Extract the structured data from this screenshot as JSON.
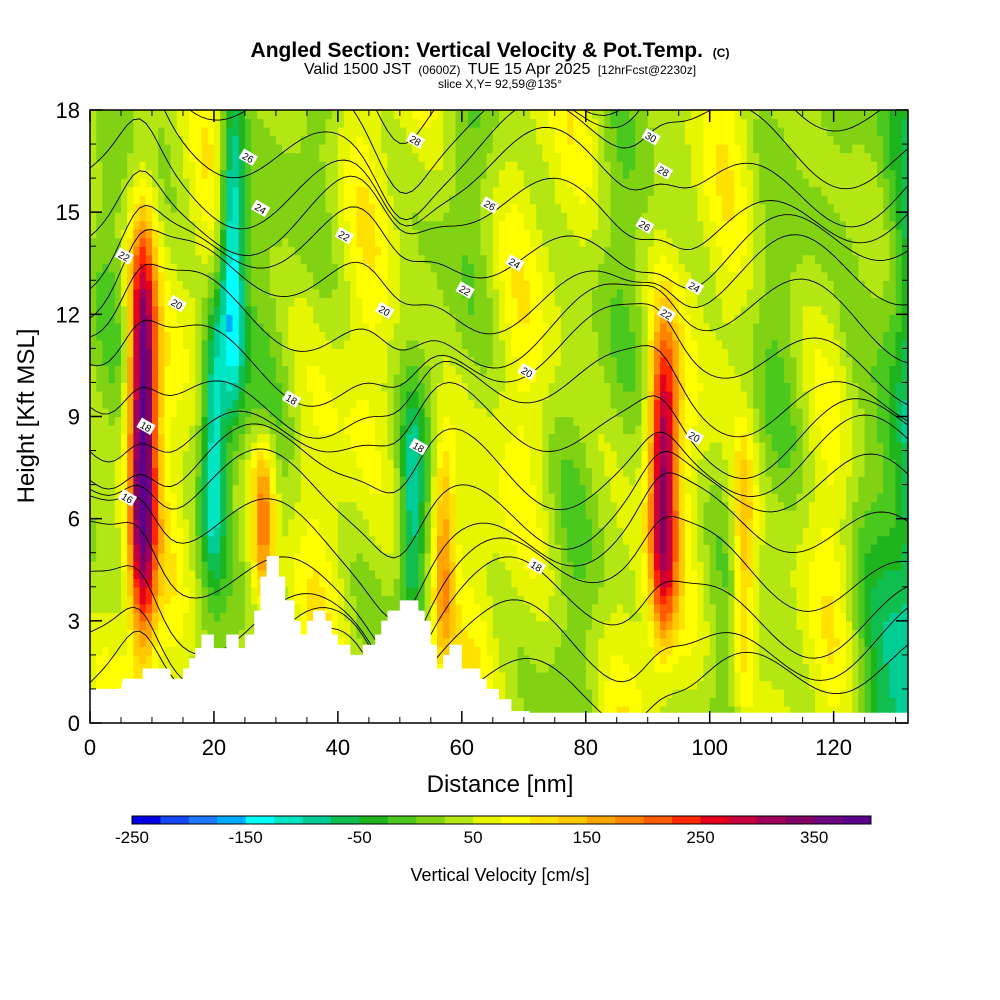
{
  "header": {
    "title_main": "Angled Section: Vertical Velocity & Pot.Temp.",
    "title_unit": "(C)",
    "valid_prefix": "Valid 1500 JST",
    "valid_utc": "(0600Z)",
    "valid_date": "TUE 15 Apr 2025",
    "forecast_info": "[12hrFcst@2230z]",
    "slice_info": "slice X,Y= 92,59@135°"
  },
  "chart_data": {
    "type": "heatmap",
    "xlabel": "Distance [nm]",
    "ylabel": "Height [Kft MSL]",
    "xlim": [
      0,
      132
    ],
    "ylim": [
      0,
      18
    ],
    "x_ticks": [
      0,
      20,
      40,
      60,
      80,
      100,
      120
    ],
    "y_ticks": [
      0,
      3,
      6,
      9,
      12,
      15,
      18
    ],
    "colorbar": {
      "label": "Vertical Velocity [cm/s]",
      "min": -250,
      "max": 400,
      "step": 25,
      "tick_values": [
        -250,
        -150,
        -50,
        50,
        150,
        250,
        350
      ],
      "colors": [
        "#0000e6",
        "#1446f5",
        "#1e78ff",
        "#00aaff",
        "#00ffff",
        "#00e6c3",
        "#00cd96",
        "#10be50",
        "#1eb41e",
        "#4bc81e",
        "#82d214",
        "#b4e614",
        "#e6f500",
        "#ffff00",
        "#ffe100",
        "#ffc800",
        "#ffa500",
        "#ff8200",
        "#ff5a00",
        "#ff2800",
        "#e6001e",
        "#c8003c",
        "#a0005a",
        "#820064",
        "#6e0082",
        "#5a008c"
      ]
    },
    "updraft_bands": [
      {
        "center_nm": 8.5,
        "peak_cm_s": 380,
        "base_kft": 3,
        "top_kft": 14
      },
      {
        "center_nm": 28,
        "peak_cm_s": 200,
        "base_kft": 4,
        "top_kft": 8
      },
      {
        "center_nm": 57,
        "peak_cm_s": 180,
        "base_kft": 2,
        "top_kft": 8
      },
      {
        "center_nm": 92.5,
        "peak_cm_s": 300,
        "base_kft": 3,
        "top_kft": 11
      },
      {
        "center_nm": 105.5,
        "peak_cm_s": 160,
        "base_kft": 1,
        "top_kft": 8
      }
    ],
    "downdraft_bands": [
      {
        "center_nm": 20,
        "min_cm_s": -120,
        "base_kft": 5,
        "top_kft": 12
      },
      {
        "center_nm": 23,
        "min_cm_s": -160,
        "base_kft": 9,
        "top_kft": 18
      },
      {
        "center_nm": 52,
        "min_cm_s": -60,
        "base_kft": 3,
        "top_kft": 9
      }
    ],
    "terrain_kft": [
      [
        0,
        1
      ],
      [
        5,
        1
      ],
      [
        5.3,
        1.3
      ],
      [
        8.5,
        1.3
      ],
      [
        8.5,
        1.6
      ],
      [
        13,
        1.6
      ],
      [
        13,
        1.3
      ],
      [
        15,
        1.3
      ],
      [
        15,
        1.6
      ],
      [
        16,
        1.6
      ],
      [
        16,
        1.9
      ],
      [
        17,
        1.9
      ],
      [
        17,
        2.2
      ],
      [
        18,
        2.2
      ],
      [
        18,
        2.6
      ],
      [
        20,
        2.6
      ],
      [
        20,
        2.2
      ],
      [
        22,
        2.2
      ],
      [
        22,
        2.6
      ],
      [
        24,
        2.6
      ],
      [
        24,
        2.2
      ],
      [
        25,
        2.2
      ],
      [
        25,
        2.6
      ],
      [
        26.5,
        2.6
      ],
      [
        26.5,
        3.3
      ],
      [
        27.5,
        3.3
      ],
      [
        27.5,
        4.3
      ],
      [
        28.5,
        4.3
      ],
      [
        28.5,
        4.9
      ],
      [
        30.5,
        4.9
      ],
      [
        30.5,
        4.3
      ],
      [
        31.5,
        4.3
      ],
      [
        31.5,
        3.6
      ],
      [
        33,
        3.6
      ],
      [
        33,
        3.0
      ],
      [
        34,
        3.0
      ],
      [
        34,
        2.6
      ],
      [
        35,
        2.6
      ],
      [
        35,
        3.0
      ],
      [
        36,
        3.0
      ],
      [
        36,
        3.3
      ],
      [
        38,
        3.3
      ],
      [
        38,
        3.0
      ],
      [
        39,
        3.0
      ],
      [
        39,
        2.6
      ],
      [
        40,
        2.6
      ],
      [
        40,
        2.3
      ],
      [
        42,
        2.3
      ],
      [
        42,
        2.0
      ],
      [
        44,
        2.0
      ],
      [
        44,
        2.3
      ],
      [
        46,
        2.3
      ],
      [
        46,
        2.6
      ],
      [
        47,
        2.6
      ],
      [
        47,
        3.0
      ],
      [
        48,
        3.0
      ],
      [
        48,
        3.3
      ],
      [
        50,
        3.3
      ],
      [
        50,
        3.6
      ],
      [
        53,
        3.6
      ],
      [
        53,
        3.3
      ],
      [
        54,
        3.3
      ],
      [
        54,
        3.0
      ],
      [
        55,
        3.0
      ],
      [
        55,
        2.3
      ],
      [
        56,
        2.3
      ],
      [
        56,
        1.6
      ],
      [
        57,
        1.6
      ],
      [
        57,
        2.0
      ],
      [
        58,
        2.0
      ],
      [
        58,
        2.3
      ],
      [
        60,
        2.3
      ],
      [
        60,
        1.6
      ],
      [
        63,
        1.6
      ],
      [
        63,
        1.3
      ],
      [
        64,
        1.3
      ],
      [
        64,
        1.0
      ],
      [
        66,
        1.0
      ],
      [
        66,
        0.7
      ],
      [
        68,
        0.7
      ],
      [
        68,
        0.35
      ],
      [
        71,
        0.35
      ],
      [
        71,
        0.3
      ],
      [
        132,
        0.3
      ]
    ],
    "isentrope_labels": [
      {
        "x": 5.5,
        "y": 13.7,
        "text": "22"
      },
      {
        "x": 14,
        "y": 12.3,
        "text": "20"
      },
      {
        "x": 9,
        "y": 8.7,
        "text": "18"
      },
      {
        "x": 6,
        "y": 6.6,
        "text": "16"
      },
      {
        "x": 25.5,
        "y": 16.6,
        "text": "26"
      },
      {
        "x": 27.5,
        "y": 15.1,
        "text": "24"
      },
      {
        "x": 41,
        "y": 14.3,
        "text": "22"
      },
      {
        "x": 47.5,
        "y": 12.1,
        "text": "20"
      },
      {
        "x": 32.5,
        "y": 9.5,
        "text": "18"
      },
      {
        "x": 52.5,
        "y": 17.1,
        "text": "28"
      },
      {
        "x": 64.5,
        "y": 15.2,
        "text": "26"
      },
      {
        "x": 68.5,
        "y": 13.5,
        "text": "24"
      },
      {
        "x": 60.5,
        "y": 12.7,
        "text": "22"
      },
      {
        "x": 70.5,
        "y": 10.3,
        "text": "20"
      },
      {
        "x": 53,
        "y": 8.1,
        "text": "18"
      },
      {
        "x": 72,
        "y": 4.6,
        "text": "18"
      },
      {
        "x": 90.5,
        "y": 17.2,
        "text": "30"
      },
      {
        "x": 92.5,
        "y": 16.2,
        "text": "28"
      },
      {
        "x": 89.5,
        "y": 14.6,
        "text": "26"
      },
      {
        "x": 97.5,
        "y": 12.8,
        "text": "24"
      },
      {
        "x": 93,
        "y": 12.0,
        "text": "22"
      },
      {
        "x": 97.5,
        "y": 8.4,
        "text": "20"
      }
    ]
  }
}
